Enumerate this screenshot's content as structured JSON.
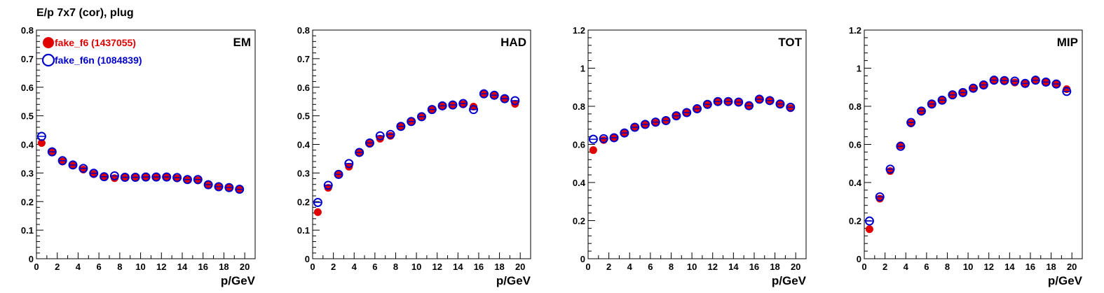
{
  "page": {
    "title": "E/p 7x7 (cor), plug"
  },
  "colors": {
    "series1": "#e00000",
    "series2": "#0000cc",
    "axis": "#000000"
  },
  "chart_data": [
    {
      "type": "scatter",
      "panel_label": "EM",
      "xlabel": "p/GeV",
      "xlim": [
        0,
        21
      ],
      "ylim": [
        0,
        0.8
      ],
      "xticks": [
        0,
        2,
        4,
        6,
        8,
        10,
        12,
        14,
        16,
        18,
        20
      ],
      "yticks": [
        0,
        0.1,
        0.2,
        0.3,
        0.4,
        0.5,
        0.6,
        0.7,
        0.8
      ],
      "ytick_labels": [
        "0",
        "0.1",
        "0.2",
        "0.3",
        "0.4",
        "0.5",
        "0.6",
        "0.7",
        "0.8"
      ],
      "legend": [
        {
          "name": "fake_f6 (1437055)",
          "marker": "filled-circle",
          "color": "#e00000"
        },
        {
          "name": "fake_f6n (1084839)",
          "marker": "open-circle",
          "color": "#0000cc"
        }
      ],
      "series": [
        {
          "name": "fake_f6 (1437055)",
          "marker": "filled-circle",
          "x": [
            0.5,
            1.5,
            2.5,
            3.5,
            4.5,
            5.5,
            6.5,
            7.5,
            8.5,
            9.5,
            10.5,
            11.5,
            12.5,
            13.5,
            14.5,
            15.5,
            16.5,
            17.5,
            18.5,
            19.5
          ],
          "y": [
            0.405,
            0.372,
            0.34,
            0.327,
            0.312,
            0.296,
            0.285,
            0.282,
            0.284,
            0.283,
            0.284,
            0.284,
            0.284,
            0.281,
            0.275,
            0.274,
            0.257,
            0.25,
            0.248,
            0.242
          ]
        },
        {
          "name": "fake_f6n (1084839)",
          "marker": "open-circle",
          "x": [
            0.5,
            1.5,
            2.5,
            3.5,
            4.5,
            5.5,
            6.5,
            7.5,
            8.5,
            9.5,
            10.5,
            11.5,
            12.5,
            13.5,
            14.5,
            15.5,
            16.5,
            17.5,
            18.5,
            19.5
          ],
          "y": [
            0.428,
            0.374,
            0.343,
            0.328,
            0.316,
            0.299,
            0.287,
            0.29,
            0.285,
            0.285,
            0.286,
            0.286,
            0.286,
            0.284,
            0.277,
            0.277,
            0.259,
            0.252,
            0.249,
            0.243
          ]
        }
      ]
    },
    {
      "type": "scatter",
      "panel_label": "HAD",
      "xlabel": "p/GeV",
      "xlim": [
        0,
        21
      ],
      "ylim": [
        0,
        0.8
      ],
      "xticks": [
        0,
        2,
        4,
        6,
        8,
        10,
        12,
        14,
        16,
        18,
        20
      ],
      "yticks": [
        0,
        0.1,
        0.2,
        0.3,
        0.4,
        0.5,
        0.6,
        0.7,
        0.8
      ],
      "ytick_labels": [
        "0",
        "0.1",
        "0.2",
        "0.3",
        "0.4",
        "0.5",
        "0.6",
        "0.7",
        "0.8"
      ],
      "series": [
        {
          "name": "fake_f6 (1437055)",
          "marker": "filled-circle",
          "x": [
            0.5,
            1.5,
            2.5,
            3.5,
            4.5,
            5.5,
            6.5,
            7.5,
            8.5,
            9.5,
            10.5,
            11.5,
            12.5,
            13.5,
            14.5,
            15.5,
            16.5,
            17.5,
            18.5,
            19.5
          ],
          "y": [
            0.163,
            0.248,
            0.293,
            0.322,
            0.37,
            0.402,
            0.42,
            0.43,
            0.462,
            0.478,
            0.495,
            0.52,
            0.533,
            0.537,
            0.54,
            0.532,
            0.575,
            0.57,
            0.562,
            0.542
          ]
        },
        {
          "name": "fake_f6n (1084839)",
          "marker": "open-circle",
          "x": [
            0.5,
            1.5,
            2.5,
            3.5,
            4.5,
            5.5,
            6.5,
            7.5,
            8.5,
            9.5,
            10.5,
            11.5,
            12.5,
            13.5,
            14.5,
            15.5,
            16.5,
            17.5,
            18.5,
            19.5
          ],
          "y": [
            0.197,
            0.257,
            0.295,
            0.333,
            0.372,
            0.405,
            0.43,
            0.435,
            0.463,
            0.48,
            0.497,
            0.522,
            0.535,
            0.538,
            0.543,
            0.522,
            0.577,
            0.572,
            0.56,
            0.553
          ]
        }
      ]
    },
    {
      "type": "scatter",
      "panel_label": "TOT",
      "xlabel": "p/GeV",
      "xlim": [
        0,
        21
      ],
      "ylim": [
        0,
        1.2
      ],
      "xticks": [
        0,
        2,
        4,
        6,
        8,
        10,
        12,
        14,
        16,
        18,
        20
      ],
      "yticks": [
        0,
        0.2,
        0.4,
        0.6,
        0.8,
        1.0,
        1.2
      ],
      "ytick_labels": [
        "0",
        "0.2",
        "0.4",
        "0.6",
        "0.8",
        "1",
        "1.2"
      ],
      "series": [
        {
          "name": "fake_f6 (1437055)",
          "marker": "filled-circle",
          "x": [
            0.5,
            1.5,
            2.5,
            3.5,
            4.5,
            5.5,
            6.5,
            7.5,
            8.5,
            9.5,
            10.5,
            11.5,
            12.5,
            13.5,
            14.5,
            15.5,
            16.5,
            17.5,
            18.5,
            19.5
          ],
          "y": [
            0.57,
            0.623,
            0.633,
            0.658,
            0.688,
            0.703,
            0.713,
            0.722,
            0.748,
            0.765,
            0.785,
            0.808,
            0.822,
            0.822,
            0.82,
            0.805,
            0.835,
            0.828,
            0.81,
            0.79
          ]
        },
        {
          "name": "fake_f6n (1084839)",
          "marker": "open-circle",
          "x": [
            0.5,
            1.5,
            2.5,
            3.5,
            4.5,
            5.5,
            6.5,
            7.5,
            8.5,
            9.5,
            10.5,
            11.5,
            12.5,
            13.5,
            14.5,
            15.5,
            16.5,
            17.5,
            18.5,
            19.5
          ],
          "y": [
            0.627,
            0.63,
            0.635,
            0.66,
            0.69,
            0.705,
            0.717,
            0.725,
            0.75,
            0.767,
            0.787,
            0.81,
            0.825,
            0.825,
            0.822,
            0.803,
            0.837,
            0.83,
            0.812,
            0.795
          ]
        }
      ]
    },
    {
      "type": "scatter",
      "panel_label": "MIP",
      "xlabel": "p/GeV",
      "xlim": [
        0,
        21
      ],
      "ylim": [
        0,
        1.2
      ],
      "xticks": [
        0,
        2,
        4,
        6,
        8,
        10,
        12,
        14,
        16,
        18,
        20
      ],
      "yticks": [
        0,
        0.2,
        0.4,
        0.6,
        0.8,
        1.0,
        1.2
      ],
      "ytick_labels": [
        "0",
        "0.2",
        "0.4",
        "0.6",
        "0.8",
        "1",
        "1.2"
      ],
      "series": [
        {
          "name": "fake_f6 (1437055)",
          "marker": "filled-circle",
          "x": [
            0.5,
            1.5,
            2.5,
            3.5,
            4.5,
            5.5,
            6.5,
            7.5,
            8.5,
            9.5,
            10.5,
            11.5,
            12.5,
            13.5,
            14.5,
            15.5,
            16.5,
            17.5,
            18.5,
            19.5
          ],
          "y": [
            0.155,
            0.315,
            0.46,
            0.595,
            0.71,
            0.773,
            0.81,
            0.83,
            0.857,
            0.87,
            0.893,
            0.91,
            0.935,
            0.932,
            0.925,
            0.918,
            0.935,
            0.925,
            0.915,
            0.89
          ]
        },
        {
          "name": "fake_f6n (1084839)",
          "marker": "open-circle",
          "x": [
            0.5,
            1.5,
            2.5,
            3.5,
            4.5,
            5.5,
            6.5,
            7.5,
            8.5,
            9.5,
            10.5,
            11.5,
            12.5,
            13.5,
            14.5,
            15.5,
            16.5,
            17.5,
            18.5,
            19.5
          ],
          "y": [
            0.198,
            0.325,
            0.47,
            0.59,
            0.715,
            0.775,
            0.812,
            0.832,
            0.86,
            0.872,
            0.895,
            0.912,
            0.937,
            0.935,
            0.932,
            0.92,
            0.937,
            0.927,
            0.917,
            0.878
          ]
        }
      ]
    }
  ]
}
